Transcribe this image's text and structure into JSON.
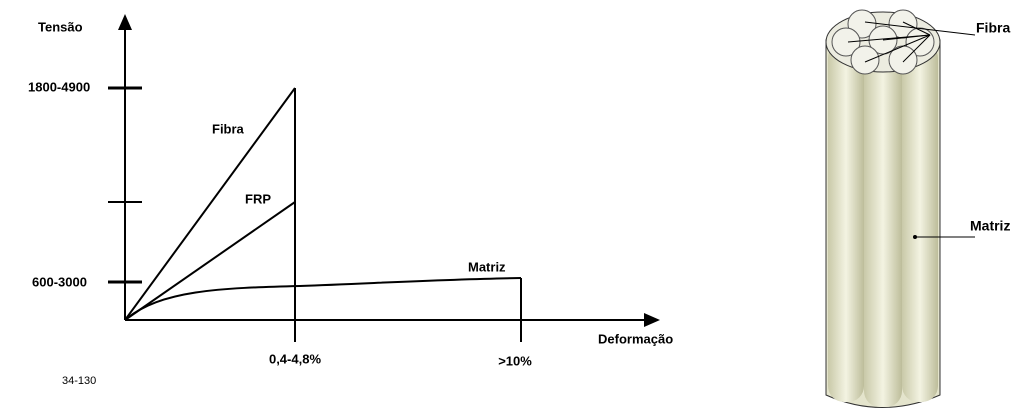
{
  "graph": {
    "y_axis_label": "Tensão",
    "x_axis_label": "Deformação",
    "y_tick_labels": [
      "1800-4900",
      "600-3000"
    ],
    "x_tick_labels": [
      "0,4-4,8%",
      ">10%"
    ],
    "curve_labels": [
      "Fibra",
      "FRP",
      "Matriz"
    ],
    "figure_code": "34-130"
  },
  "illustration": {
    "labels": [
      "Fibra",
      "Matriz"
    ]
  }
}
